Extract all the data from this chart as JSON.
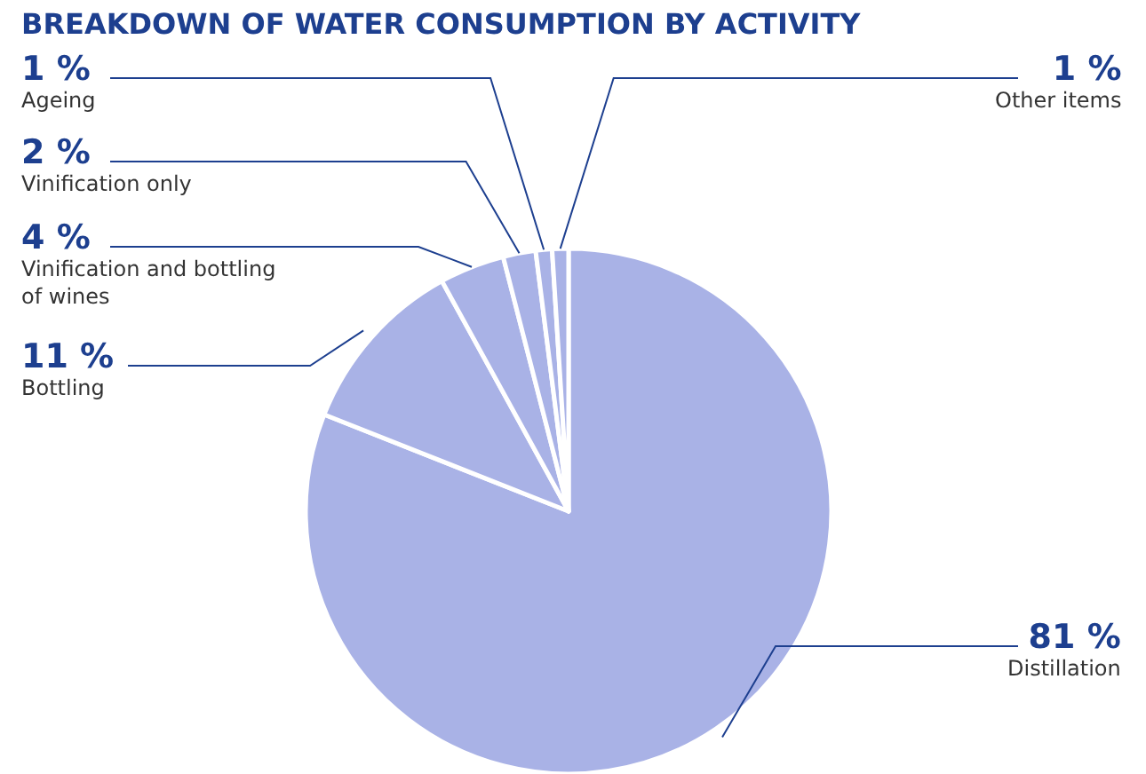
{
  "chart_data": {
    "type": "pie",
    "title": "BREAKDOWN OF WATER CONSUMPTION BY ACTIVITY",
    "categories": [
      "Distillation",
      "Bottling",
      "Vinification and bottling of wines",
      "Vinification only",
      "Ageing",
      "Other items"
    ],
    "values": [
      81,
      11,
      4,
      2,
      1,
      1
    ],
    "value_labels": [
      "81 %",
      "11 %",
      "4 %",
      "2 %",
      "1 %",
      "1 %"
    ],
    "colors": [
      "#a9b2e6",
      "#a9b2e6",
      "#a9b2e6",
      "#a9b2e6",
      "#a9b2e6",
      "#a9b2e6"
    ],
    "legend": false
  }
}
